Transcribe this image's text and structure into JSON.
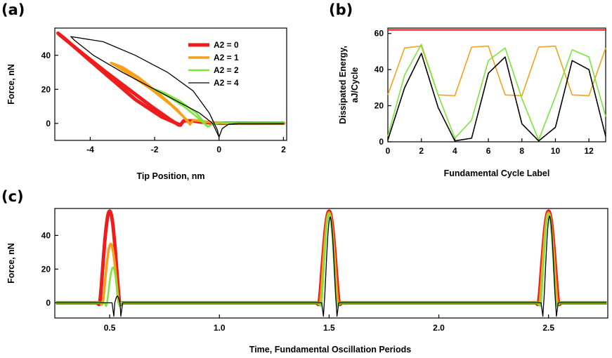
{
  "chart_data": [
    {
      "panel": "(a)",
      "type": "line",
      "xlabel": "Tip Position, nm",
      "ylabel": "Force, nN",
      "xlim": [
        -5.1,
        2.1
      ],
      "ylim": [
        -10,
        56
      ],
      "xticks": [
        -4,
        -2,
        0,
        2
      ],
      "yticks": [
        0,
        20,
        40
      ],
      "legend": {
        "placement": "top-right",
        "entries": [
          "A2 = 0",
          "A2 = 1",
          "A2 = 2",
          "A2 = 4"
        ]
      },
      "series": [
        {
          "name": "A2 = 0",
          "color": "#ee1c1c",
          "width": 5,
          "x": [
            -4.95,
            -4.3,
            -3.5,
            -2.8,
            -2.1,
            -1.5,
            -1.25,
            -1.2,
            -1.1,
            -0.8,
            -0.6,
            -0.4,
            -0.2,
            0.2,
            2.0
          ],
          "y": [
            52,
            42,
            30,
            20,
            10,
            2,
            -1,
            -1,
            1.5,
            1.5,
            0.8,
            0.5,
            0.2,
            0.1,
            0.1
          ],
          "return_x": [
            -1.2,
            -1.8,
            -2.6,
            -3.4,
            -4.2,
            -4.8,
            -5.0,
            -4.95
          ],
          "return_y": [
            -1,
            4,
            14,
            27,
            40,
            50,
            53,
            52
          ]
        },
        {
          "name": "A2 = 1",
          "color": "#f7a11a",
          "width": 3.5,
          "x": [
            -3.3,
            -2.8,
            -2.1,
            -1.5,
            -1.0,
            -0.9,
            -0.8,
            -0.6,
            -0.4,
            -0.1,
            0.2,
            2.0
          ],
          "y": [
            35,
            29,
            20,
            11,
            2,
            -0.5,
            2,
            1.5,
            1,
            0.5,
            0.2,
            0.3
          ],
          "return_x": [
            -0.9,
            -1.3,
            -1.9,
            -2.5,
            -3.0,
            -3.35,
            -3.3
          ],
          "return_y": [
            -0.5,
            8,
            18,
            27,
            33,
            35.5,
            35
          ]
        },
        {
          "name": "A2 = 2",
          "color": "#7ae639",
          "width": 2.5,
          "x": [
            -2.0,
            -1.6,
            -1.1,
            -0.7,
            -0.5,
            -0.35,
            -0.2,
            0.1,
            0.3,
            2.0
          ],
          "y": [
            20,
            16,
            10,
            4,
            0.5,
            -2,
            -0.5,
            0.5,
            0.2,
            0.2
          ],
          "return_x": [
            -0.35,
            -0.7,
            -1.2,
            -1.7,
            -2.05,
            -2.0
          ],
          "return_y": [
            -2,
            6,
            13,
            18,
            20.5,
            20
          ]
        },
        {
          "name": "A2 = 4",
          "color": "#000000",
          "width": 1.3,
          "x": [
            -4.6,
            -3.6,
            -2.6,
            -1.6,
            -0.8,
            -0.3,
            -0.05,
            0.0,
            0.1,
            0.3,
            0.6,
            2.0
          ],
          "y": [
            51,
            48,
            40,
            30,
            19,
            6,
            -4,
            -8,
            -3,
            -0.5,
            0,
            0
          ],
          "return_x": [
            0.0,
            -0.2,
            -0.6,
            -1.2,
            -2.0,
            -3.0,
            -3.9,
            -4.5,
            -4.6
          ],
          "return_y": [
            -8,
            0,
            6,
            12,
            20,
            30,
            40,
            49,
            51
          ]
        }
      ]
    },
    {
      "panel": "(b)",
      "type": "line",
      "xlabel": "Fundamental Cycle Label",
      "ylabel": [
        "Dissipated Energy,",
        "aJ/Cycle"
      ],
      "xlim": [
        0,
        13
      ],
      "ylim": [
        0,
        63
      ],
      "xticks": [
        0,
        2,
        4,
        6,
        8,
        10,
        12
      ],
      "yticks": [
        0,
        20,
        40,
        60
      ],
      "categories": [
        0,
        1,
        2,
        3,
        4,
        5,
        6,
        7,
        8,
        9,
        10,
        11,
        12,
        13
      ],
      "series": [
        {
          "name": "A2 = 0",
          "color": "#ee1c1c",
          "width": 2.2,
          "values": [
            62,
            62,
            62,
            62,
            62,
            62,
            62,
            62,
            62,
            62,
            62,
            62,
            62,
            62
          ]
        },
        {
          "name": "A2 = 1",
          "color": "#f7a11a",
          "width": 1.6,
          "values": [
            26,
            52,
            53,
            26,
            25.5,
            52.5,
            53,
            26,
            25.5,
            52.5,
            53,
            26,
            25.5,
            52
          ]
        },
        {
          "name": "A2 = 2",
          "color": "#7ae639",
          "width": 1.6,
          "values": [
            3,
            37,
            54,
            26,
            2,
            12,
            45,
            52,
            24,
            1,
            25,
            51,
            47,
            14
          ]
        },
        {
          "name": "A2 = 4",
          "color": "#000000",
          "width": 1.6,
          "values": [
            1,
            30,
            49,
            19,
            0.5,
            2,
            38,
            47,
            10,
            0.5,
            8,
            45,
            40,
            3
          ]
        }
      ]
    },
    {
      "panel": "(c)",
      "type": "line",
      "xlabel": "Time, Fundamental Oscillation Periods",
      "ylabel": "Force, nN",
      "xlim": [
        0.25,
        2.77
      ],
      "ylim": [
        -9,
        56
      ],
      "xticks": [
        0.5,
        1.0,
        1.5,
        2.0,
        2.5
      ],
      "xticklabels": [
        "0.5",
        "1.0",
        "1.5",
        "2.0",
        "2.5"
      ],
      "yticks": [
        0,
        20,
        40
      ],
      "pulses": [
        {
          "series": "A2 = 0",
          "color": "#ee1c1c",
          "width": 5,
          "shapes": [
            {
              "center": 0.5,
              "half_width": 0.045,
              "peak": 54.5,
              "dip": -1
            },
            {
              "center": 1.5,
              "half_width": 0.045,
              "peak": 54.5,
              "dip": -1
            },
            {
              "center": 2.5,
              "half_width": 0.045,
              "peak": 54.5,
              "dip": -1
            }
          ]
        },
        {
          "series": "A2 = 1",
          "color": "#f7a11a",
          "width": 3.5,
          "shapes": [
            {
              "center": 0.505,
              "half_width": 0.036,
              "peak": 35,
              "dip": -1
            },
            {
              "center": 1.5,
              "half_width": 0.04,
              "peak": 53.5,
              "dip": -1
            },
            {
              "center": 2.5,
              "half_width": 0.04,
              "peak": 53.5,
              "dip": -1
            }
          ]
        },
        {
          "series": "A2 = 2",
          "color": "#7ae639",
          "width": 2.5,
          "shapes": [
            {
              "center": 0.515,
              "half_width": 0.027,
              "peak": 21,
              "dip": -2
            },
            {
              "center": 1.5,
              "half_width": 0.034,
              "peak": 53,
              "dip": -2
            },
            {
              "center": 2.5,
              "half_width": 0.034,
              "peak": 53,
              "dip": -2
            }
          ]
        },
        {
          "series": "A2 = 4",
          "color": "#000000",
          "width": 1.3,
          "shapes": [
            {
              "center": 0.535,
              "half_width": 0.012,
              "peak": 4,
              "dip": -8
            },
            {
              "center": 1.505,
              "half_width": 0.027,
              "peak": 51,
              "dip": -8
            },
            {
              "center": 2.505,
              "half_width": 0.027,
              "peak": 51.5,
              "dip": -8
            }
          ]
        }
      ]
    }
  ]
}
